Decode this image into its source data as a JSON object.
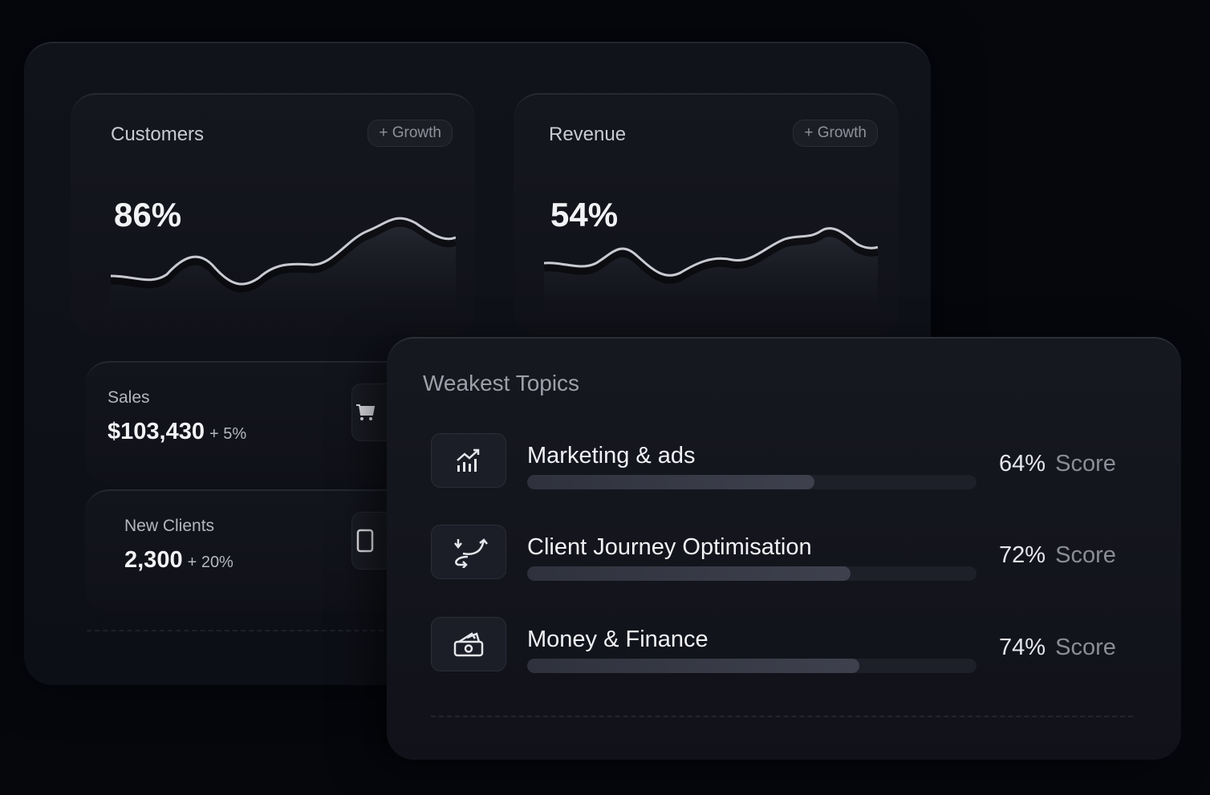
{
  "customers_card": {
    "title": "Customers",
    "badge": "+ Growth",
    "value": "86%"
  },
  "revenue_card": {
    "title": "Revenue",
    "badge": "+ Growth",
    "value": "54%"
  },
  "sales_card": {
    "label": "Sales",
    "value": "$103,430",
    "delta": "+ 5%",
    "icon": "cart-icon"
  },
  "clients_card": {
    "label": "New Clients",
    "value": "2,300",
    "delta": "+ 20%",
    "icon": "tablet-icon"
  },
  "weakest_topics": {
    "title": "Weakest Topics",
    "score_word": "Score",
    "items": [
      {
        "name": "Marketing & ads",
        "score": "64%",
        "progress": 0.64,
        "icon": "chart-growth-icon"
      },
      {
        "name": "Client Journey Optimisation",
        "score": "72%",
        "progress": 0.72,
        "icon": "route-icon"
      },
      {
        "name": "Money & Finance",
        "score": "74%",
        "progress": 0.74,
        "icon": "money-icon"
      }
    ]
  },
  "colors": {
    "background": "#05070d",
    "panel": "#11131b",
    "text_primary": "#f2f3f6",
    "text_muted": "#8a8d97"
  }
}
